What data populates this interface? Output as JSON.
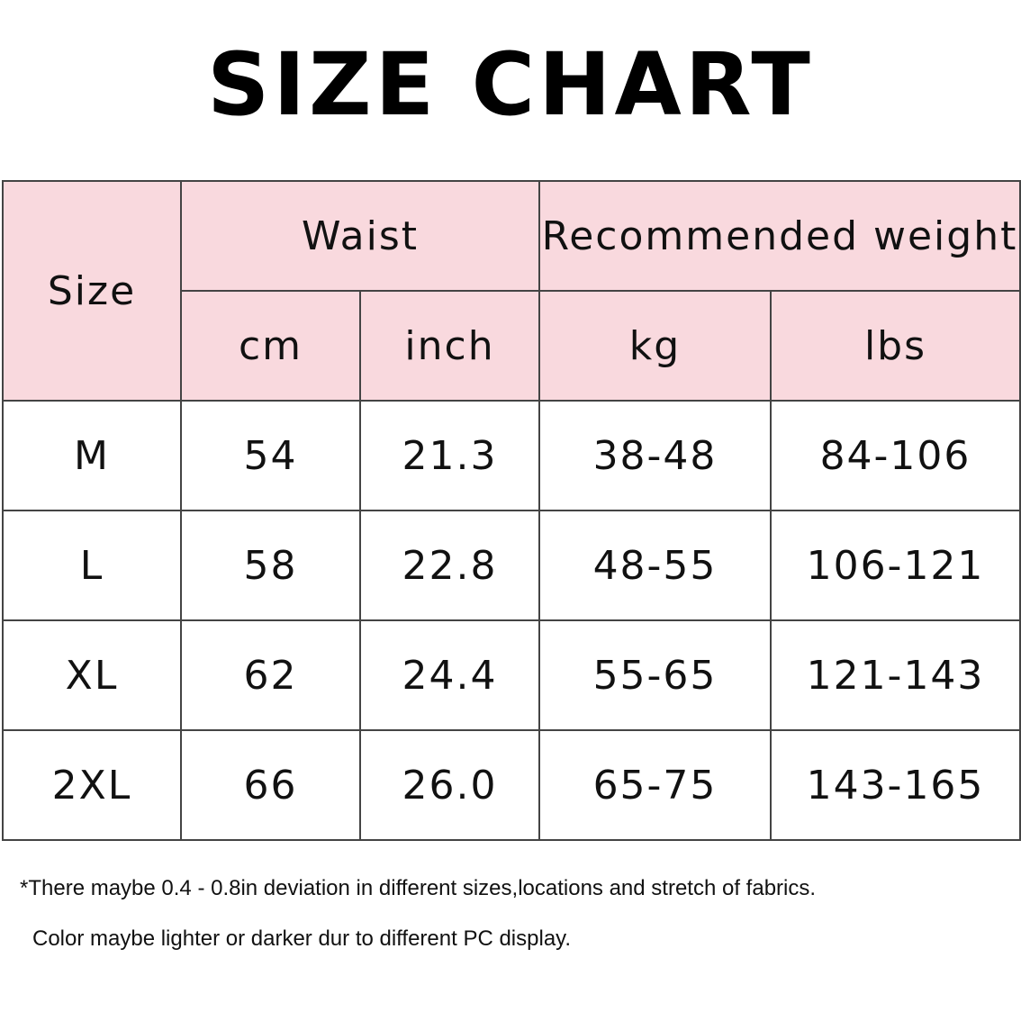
{
  "title": "SIZE CHART",
  "header": {
    "size": "Size",
    "waist": "Waist",
    "weight": "Recommended weight",
    "cm": "cm",
    "inch": "inch",
    "kg": "kg",
    "lbs": "lbs"
  },
  "header_color": "#f9d9de",
  "rows": [
    {
      "size": "M",
      "cm": "54",
      "inch": "21.3",
      "kg": "38-48",
      "lbs": "84-106"
    },
    {
      "size": "L",
      "cm": "58",
      "inch": "22.8",
      "kg": "48-55",
      "lbs": "106-121"
    },
    {
      "size": "XL",
      "cm": "62",
      "inch": "24.4",
      "kg": "55-65",
      "lbs": "121-143"
    },
    {
      "size": "2XL",
      "cm": "66",
      "inch": "26.0",
      "kg": "65-75",
      "lbs": "143-165"
    }
  ],
  "notes": [
    "*There maybe 0.4 - 0.8in deviation in different sizes,locations and stretch of fabrics.",
    "Color maybe lighter or darker dur to different PC display."
  ]
}
